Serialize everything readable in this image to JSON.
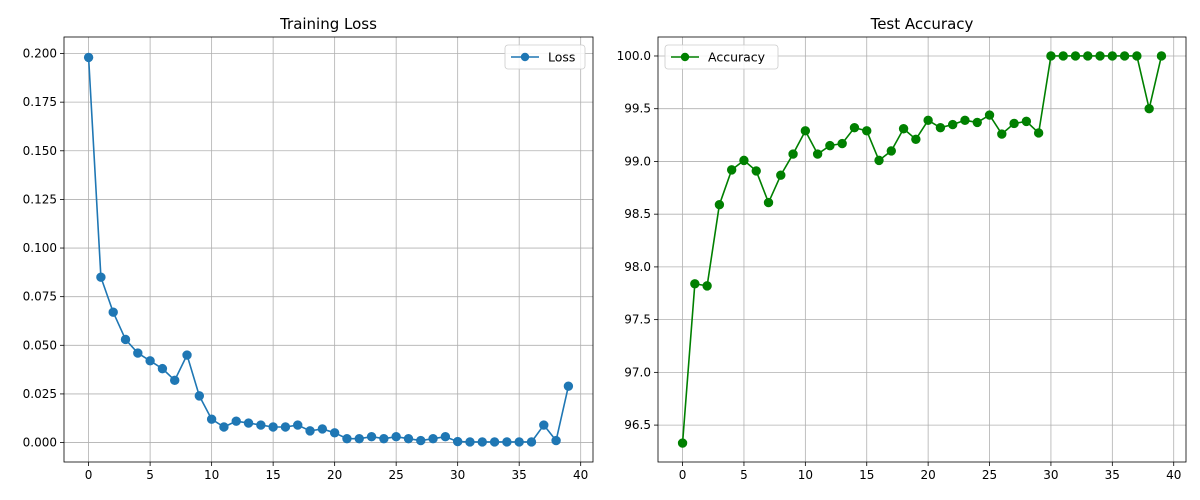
{
  "chart_data": [
    {
      "type": "line",
      "title": "Training Loss",
      "xlabel": "",
      "ylabel": "",
      "xlim": [
        -2,
        41
      ],
      "ylim": [
        -0.01,
        0.2085
      ],
      "xticks": [
        0,
        5,
        10,
        15,
        20,
        25,
        30,
        35,
        40
      ],
      "xtick_labels": [
        "0",
        "5",
        "10",
        "15",
        "20",
        "25",
        "30",
        "35",
        "40"
      ],
      "yticks": [
        0.0,
        0.025,
        0.05,
        0.075,
        0.1,
        0.125,
        0.15,
        0.175,
        0.2
      ],
      "ytick_labels": [
        "0.000",
        "0.025",
        "0.050",
        "0.075",
        "0.100",
        "0.125",
        "0.150",
        "0.175",
        "0.200"
      ],
      "grid": true,
      "legend_position": "top-right",
      "series": [
        {
          "name": "Loss",
          "color": "#1f77b4",
          "marker": "circle",
          "x": [
            0,
            1,
            2,
            3,
            4,
            5,
            6,
            7,
            8,
            9,
            10,
            11,
            12,
            13,
            14,
            15,
            16,
            17,
            18,
            19,
            20,
            21,
            22,
            23,
            24,
            25,
            26,
            27,
            28,
            29,
            30,
            31,
            32,
            33,
            34,
            35,
            36,
            37,
            38,
            39
          ],
          "y": [
            0.198,
            0.085,
            0.067,
            0.053,
            0.046,
            0.042,
            0.038,
            0.032,
            0.045,
            0.024,
            0.012,
            0.008,
            0.011,
            0.01,
            0.009,
            0.008,
            0.008,
            0.009,
            0.006,
            0.007,
            0.005,
            0.002,
            0.002,
            0.003,
            0.002,
            0.003,
            0.002,
            0.001,
            0.002,
            0.003,
            0.0005,
            0.0003,
            0.0003,
            0.0003,
            0.0003,
            0.0003,
            0.0003,
            0.009,
            0.001,
            0.029
          ]
        }
      ]
    },
    {
      "type": "line",
      "title": "Test Accuracy",
      "xlabel": "",
      "ylabel": "",
      "xlim": [
        -2,
        41
      ],
      "ylim": [
        96.15,
        100.18
      ],
      "xticks": [
        0,
        5,
        10,
        15,
        20,
        25,
        30,
        35,
        40
      ],
      "xtick_labels": [
        "0",
        "5",
        "10",
        "15",
        "20",
        "25",
        "30",
        "35",
        "40"
      ],
      "yticks": [
        96.5,
        97.0,
        97.5,
        98.0,
        98.5,
        99.0,
        99.5,
        100.0
      ],
      "ytick_labels": [
        "96.5",
        "97.0",
        "97.5",
        "98.0",
        "98.5",
        "99.0",
        "99.5",
        "100.0"
      ],
      "grid": true,
      "legend_position": "top-left",
      "series": [
        {
          "name": "Accuracy",
          "color": "#008000",
          "marker": "circle",
          "x": [
            0,
            1,
            2,
            3,
            4,
            5,
            6,
            7,
            8,
            9,
            10,
            11,
            12,
            13,
            14,
            15,
            16,
            17,
            18,
            19,
            20,
            21,
            22,
            23,
            24,
            25,
            26,
            27,
            28,
            29,
            30,
            31,
            32,
            33,
            34,
            35,
            36,
            37,
            38,
            39
          ],
          "y": [
            96.33,
            97.84,
            97.82,
            98.59,
            98.92,
            99.01,
            98.91,
            98.61,
            98.87,
            99.07,
            99.29,
            99.07,
            99.15,
            99.17,
            99.32,
            99.29,
            99.01,
            99.1,
            99.31,
            99.21,
            99.39,
            99.32,
            99.35,
            99.39,
            99.37,
            99.44,
            99.26,
            99.36,
            99.38,
            99.27,
            100.0,
            100.0,
            100.0,
            100.0,
            100.0,
            100.0,
            100.0,
            100.0,
            99.5,
            100.0
          ]
        }
      ]
    }
  ]
}
